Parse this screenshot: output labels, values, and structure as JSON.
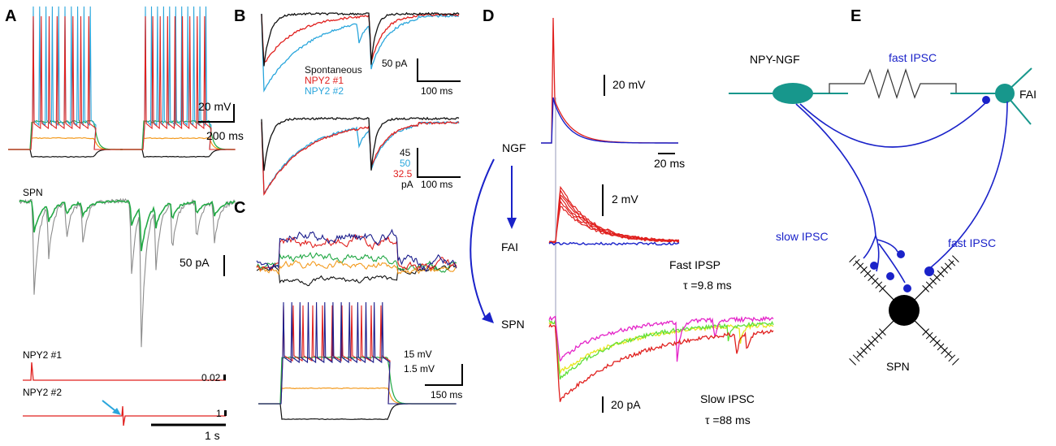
{
  "panels": {
    "A": {
      "label": "A",
      "scale_voltage": "20 mV",
      "scale_time": "200 ms",
      "spn_label": "SPN",
      "scale_current": "50 pA",
      "npy1_label": "NPY2 #1",
      "npy1_scale": "0.02",
      "npy2_label": "NPY2 #2",
      "npy2_scale": "1",
      "scale_time2": "1 s"
    },
    "B": {
      "label": "B",
      "legend": [
        "Spontaneous",
        "NPY2 #1",
        "NPY2 #2"
      ],
      "scale_current": "50 pA",
      "scale_time": "100 ms",
      "norm_values": [
        "45",
        "50",
        "32.5"
      ],
      "norm_unit": "pA",
      "scale_time2": "100 ms"
    },
    "C": {
      "label": "C",
      "scale_v1": "15 mV",
      "scale_v2": "1.5 mV",
      "scale_time": "150 ms"
    },
    "D": {
      "label": "D",
      "scale_v1": "20 mV",
      "scale_t1": "20 ms",
      "cell_ngf": "NGF",
      "scale_v2": "2 mV",
      "cell_fai": "FAI",
      "fast_ipsp": "Fast IPSP",
      "tau_fast": "τ =9.8 ms",
      "cell_spn": "SPN",
      "scale_current": "20 pA",
      "slow_ipsc": "Slow IPSC",
      "tau_slow": "τ =88 ms"
    },
    "E": {
      "label": "E",
      "npy_ngf": "NPY-NGF",
      "fast_ipsc_top": "fast IPSC",
      "fai": "FAI",
      "slow_ipsc": "slow IPSC",
      "fast_ipsc_bottom": "fast IPSC",
      "spn": "SPN"
    }
  },
  "colors": {
    "black": "#111111",
    "red": "#e0201e",
    "cyan": "#2aa6dc",
    "green": "#22a845",
    "orange": "#f39a1e",
    "navy": "#1b1d8c",
    "blue": "#1a22c9",
    "gray": "#8c8c8c",
    "teal": "#17978c",
    "magenta": "#e424c8",
    "yellow": "#e6e61e",
    "lime": "#5fe03a"
  }
}
